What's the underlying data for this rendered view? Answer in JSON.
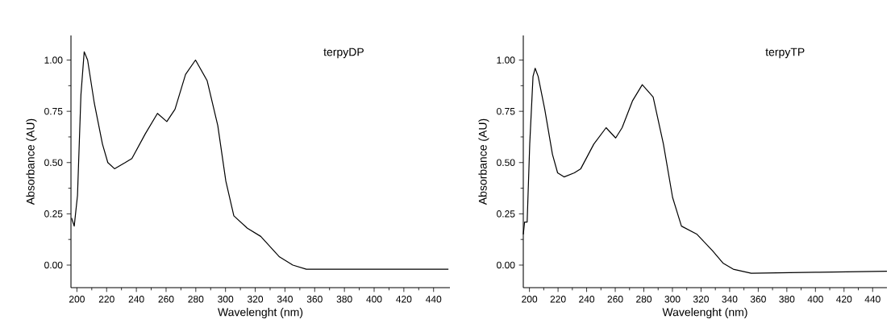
{
  "chart_data": [
    {
      "type": "line",
      "xlabel": "Wavelenght (nm)",
      "ylabel": "Absorbance (AU)",
      "annotations": [
        "terpyDP"
      ],
      "grid": false,
      "xlim": [
        196,
        451
      ],
      "ylim": [
        -0.11,
        1.12
      ],
      "xticks": [
        200,
        220,
        240,
        260,
        280,
        300,
        320,
        340,
        360,
        380,
        400,
        420,
        440
      ],
      "yticks": [
        {
          "value": 0,
          "label": "0.00"
        },
        {
          "value": 0.25,
          "label": "0.25"
        },
        {
          "value": 0.5,
          "label": "0.50"
        },
        {
          "value": 0.75,
          "label": "0.75"
        },
        {
          "value": 1,
          "label": "1.00"
        }
      ],
      "series": [
        {
          "color": "#000000",
          "x": [
            196.4,
            198.2,
            200.4,
            202.7,
            204.9,
            207.2,
            211.7,
            217.2,
            220.8,
            225.3,
            232.5,
            237,
            246,
            254.2,
            260.5,
            266,
            273.1,
            279.8,
            287.6,
            294.8,
            300.2,
            305.6,
            314.7,
            323.7,
            336.3,
            345.3,
            354.4,
            380,
            420,
            450
          ],
          "values": [
            0.23,
            0.19,
            0.34,
            0.83,
            1.04,
            1.0,
            0.79,
            0.59,
            0.5,
            0.47,
            0.5,
            0.52,
            0.64,
            0.74,
            0.7,
            0.76,
            0.93,
            1.0,
            0.9,
            0.68,
            0.41,
            0.24,
            0.18,
            0.14,
            0.04,
            0.0,
            -0.02,
            -0.02,
            -0.02,
            -0.02
          ]
        }
      ]
    },
    {
      "type": "line",
      "xlabel": "Wavelenght (nm)",
      "ylabel": "Absorbance (AU)",
      "annotations": [
        "terpyTP"
      ],
      "grid": false,
      "xlim": [
        195.7,
        450
      ],
      "ylim": [
        -0.11,
        1.12
      ],
      "xticks": [
        200,
        220,
        240,
        260,
        280,
        300,
        320,
        340,
        360,
        380,
        400,
        420,
        440
      ],
      "yticks": [
        {
          "value": 0,
          "label": "0.00"
        },
        {
          "value": 0.25,
          "label": "0.25"
        },
        {
          "value": 0.5,
          "label": "0.50"
        },
        {
          "value": 0.75,
          "label": "0.75"
        },
        {
          "value": 1,
          "label": "1.00"
        }
      ],
      "series": [
        {
          "color": "#000000",
          "x": [
            195.7,
            196.6,
            198.4,
            200.2,
            202.5,
            204,
            206.1,
            210.7,
            216.1,
            219.7,
            224.2,
            231.4,
            235.9,
            245,
            253.6,
            260.3,
            264.8,
            272,
            278.9,
            286.5,
            293.7,
            300.1,
            306.3,
            317.2,
            328,
            335.3,
            342.5,
            355.1,
            400,
            450
          ],
          "values": [
            0.15,
            0.21,
            0.21,
            0.59,
            0.92,
            0.96,
            0.92,
            0.76,
            0.54,
            0.45,
            0.43,
            0.45,
            0.47,
            0.59,
            0.67,
            0.62,
            0.67,
            0.8,
            0.88,
            0.82,
            0.59,
            0.33,
            0.19,
            0.15,
            0.07,
            0.01,
            -0.02,
            -0.04,
            -0.035,
            -0.03
          ]
        }
      ]
    }
  ]
}
